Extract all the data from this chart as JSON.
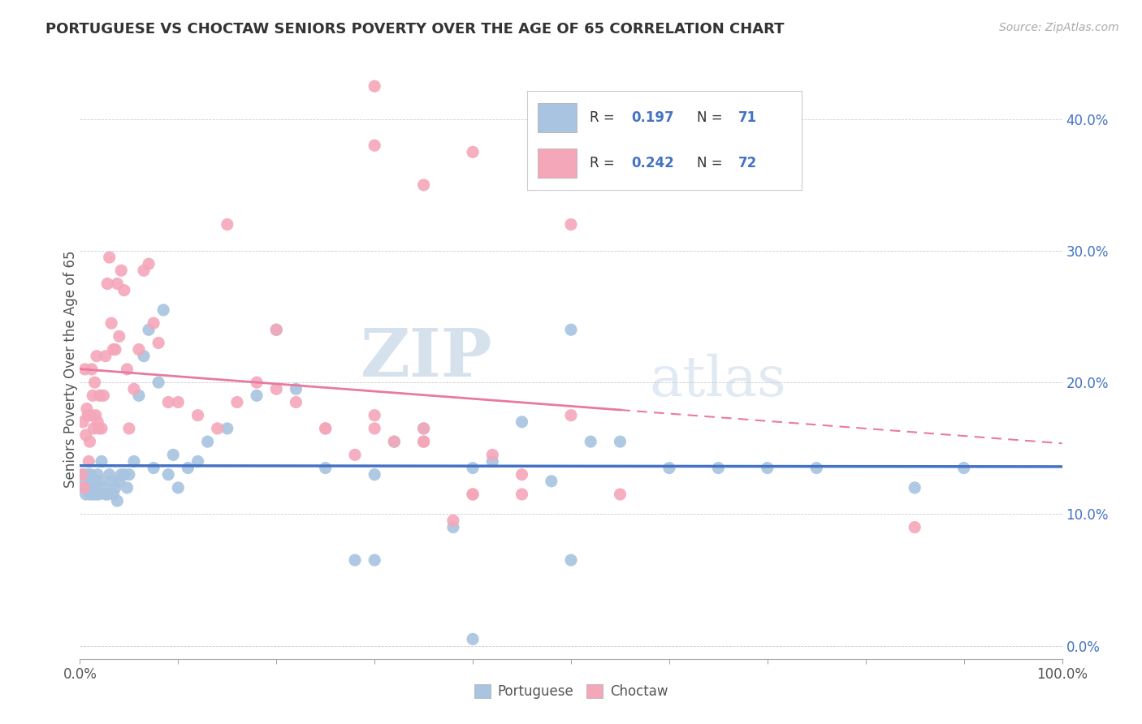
{
  "title": "PORTUGUESE VS CHOCTAW SENIORS POVERTY OVER THE AGE OF 65 CORRELATION CHART",
  "source": "Source: ZipAtlas.com",
  "ylabel": "Seniors Poverty Over the Age of 65",
  "watermark_zip": "ZIP",
  "watermark_atlas": "atlas",
  "legend_portuguese": "Portuguese",
  "legend_choctaw": "Choctaw",
  "r_portuguese": 0.197,
  "n_portuguese": 71,
  "r_choctaw": 0.242,
  "n_choctaw": 72,
  "color_portuguese": "#a8c4e0",
  "color_choctaw": "#f4a7b9",
  "color_portuguese_line": "#4472c4",
  "color_choctaw_line": "#e87aa0",
  "xlim": [
    0,
    1
  ],
  "ylim": [
    -0.01,
    0.43
  ],
  "portuguese_x": [
    0.003,
    0.004,
    0.005,
    0.006,
    0.007,
    0.008,
    0.009,
    0.01,
    0.011,
    0.012,
    0.013,
    0.014,
    0.015,
    0.016,
    0.017,
    0.018,
    0.019,
    0.02,
    0.022,
    0.024,
    0.026,
    0.028,
    0.03,
    0.032,
    0.034,
    0.036,
    0.038,
    0.04,
    0.042,
    0.045,
    0.048,
    0.05,
    0.055,
    0.06,
    0.065,
    0.07,
    0.075,
    0.08,
    0.085,
    0.09,
    0.095,
    0.1,
    0.11,
    0.12,
    0.13,
    0.15,
    0.18,
    0.2,
    0.22,
    0.25,
    0.28,
    0.3,
    0.32,
    0.35,
    0.38,
    0.4,
    0.42,
    0.45,
    0.48,
    0.5,
    0.52,
    0.55,
    0.6,
    0.65,
    0.7,
    0.75,
    0.85,
    0.9,
    0.3,
    0.5,
    0.4
  ],
  "portuguese_y": [
    0.125,
    0.13,
    0.12,
    0.115,
    0.12,
    0.13,
    0.12,
    0.115,
    0.13,
    0.12,
    0.115,
    0.12,
    0.125,
    0.115,
    0.12,
    0.13,
    0.115,
    0.125,
    0.14,
    0.12,
    0.115,
    0.115,
    0.13,
    0.125,
    0.115,
    0.12,
    0.11,
    0.125,
    0.13,
    0.13,
    0.12,
    0.13,
    0.14,
    0.19,
    0.22,
    0.24,
    0.135,
    0.2,
    0.255,
    0.13,
    0.145,
    0.12,
    0.135,
    0.14,
    0.155,
    0.165,
    0.19,
    0.24,
    0.195,
    0.135,
    0.065,
    0.13,
    0.155,
    0.165,
    0.09,
    0.135,
    0.14,
    0.17,
    0.125,
    0.24,
    0.155,
    0.155,
    0.135,
    0.135,
    0.135,
    0.135,
    0.12,
    0.135,
    0.065,
    0.065,
    0.005
  ],
  "choctaw_x": [
    0.002,
    0.003,
    0.004,
    0.005,
    0.006,
    0.007,
    0.008,
    0.009,
    0.01,
    0.011,
    0.012,
    0.013,
    0.014,
    0.015,
    0.016,
    0.017,
    0.018,
    0.019,
    0.02,
    0.022,
    0.024,
    0.026,
    0.028,
    0.03,
    0.032,
    0.034,
    0.036,
    0.038,
    0.04,
    0.042,
    0.045,
    0.048,
    0.05,
    0.055,
    0.06,
    0.065,
    0.07,
    0.075,
    0.08,
    0.09,
    0.1,
    0.12,
    0.14,
    0.16,
    0.18,
    0.2,
    0.22,
    0.25,
    0.28,
    0.3,
    0.32,
    0.35,
    0.38,
    0.4,
    0.42,
    0.45,
    0.5,
    0.55,
    0.3,
    0.35,
    0.4,
    0.3,
    0.5,
    0.85,
    0.2,
    0.15,
    0.45,
    0.25,
    0.35,
    0.3,
    0.35,
    0.4
  ],
  "choctaw_y": [
    0.13,
    0.17,
    0.12,
    0.21,
    0.16,
    0.18,
    0.175,
    0.14,
    0.155,
    0.175,
    0.21,
    0.19,
    0.165,
    0.2,
    0.175,
    0.22,
    0.17,
    0.165,
    0.19,
    0.165,
    0.19,
    0.22,
    0.275,
    0.295,
    0.245,
    0.225,
    0.225,
    0.275,
    0.235,
    0.285,
    0.27,
    0.21,
    0.165,
    0.195,
    0.225,
    0.285,
    0.29,
    0.245,
    0.23,
    0.185,
    0.185,
    0.175,
    0.165,
    0.185,
    0.2,
    0.195,
    0.185,
    0.165,
    0.145,
    0.175,
    0.155,
    0.165,
    0.095,
    0.115,
    0.145,
    0.115,
    0.175,
    0.115,
    0.38,
    0.35,
    0.375,
    0.425,
    0.32,
    0.09,
    0.24,
    0.32,
    0.13,
    0.165,
    0.155,
    0.165,
    0.155,
    0.115
  ]
}
